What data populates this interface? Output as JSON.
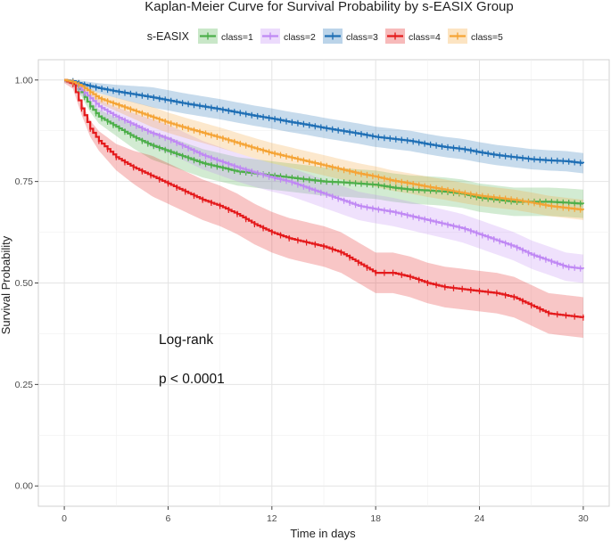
{
  "chart_data": {
    "type": "line",
    "title": "Kaplan-Meier Curve for Survival Probability by s-EASIX Group",
    "xlabel": "Time in days",
    "ylabel": "Survival Probability",
    "xlim": [
      0,
      30
    ],
    "ylim": [
      0,
      1
    ],
    "xticks": [
      0,
      6,
      12,
      18,
      24,
      30
    ],
    "yticks": [
      0.0,
      0.25,
      0.5,
      0.75,
      1.0
    ],
    "ytick_labels": [
      "0.00",
      "0.25",
      "0.50",
      "0.75",
      "1.00"
    ],
    "legend_title": "s-EASIX",
    "legend_position": "top",
    "annotation": {
      "line1": "Log-rank",
      "line2": "p < 0.0001"
    },
    "series": [
      {
        "name": "class=1",
        "color": "#4daf4a",
        "band": 0.035,
        "x": [
          0,
          0.5,
          1,
          1.5,
          2,
          3,
          4,
          5,
          6,
          7,
          8,
          9,
          10,
          11,
          12,
          13,
          14,
          15,
          16,
          17,
          18,
          19,
          20,
          21,
          22,
          23,
          24,
          25,
          26,
          27,
          28,
          29,
          30
        ],
        "y": [
          1.0,
          0.995,
          0.97,
          0.935,
          0.91,
          0.885,
          0.86,
          0.84,
          0.825,
          0.81,
          0.795,
          0.785,
          0.775,
          0.77,
          0.765,
          0.76,
          0.755,
          0.75,
          0.748,
          0.745,
          0.742,
          0.735,
          0.73,
          0.728,
          0.725,
          0.72,
          0.71,
          0.705,
          0.7,
          0.7,
          0.7,
          0.698,
          0.695
        ]
      },
      {
        "name": "class=2",
        "color": "#c089f4",
        "band": 0.035,
        "x": [
          0,
          0.5,
          1,
          1.5,
          2,
          3,
          4,
          5,
          6,
          7,
          8,
          9,
          10,
          11,
          12,
          13,
          14,
          15,
          16,
          17,
          18,
          19,
          20,
          21,
          22,
          23,
          24,
          25,
          26,
          27,
          28,
          29,
          30
        ],
        "y": [
          1.0,
          0.995,
          0.975,
          0.955,
          0.935,
          0.91,
          0.89,
          0.87,
          0.855,
          0.835,
          0.815,
          0.8,
          0.785,
          0.772,
          0.76,
          0.75,
          0.735,
          0.72,
          0.705,
          0.69,
          0.682,
          0.675,
          0.665,
          0.655,
          0.645,
          0.635,
          0.62,
          0.605,
          0.59,
          0.57,
          0.555,
          0.54,
          0.535
        ]
      },
      {
        "name": "class=3",
        "color": "#1f6fb5",
        "band": 0.025,
        "x": [
          0,
          0.5,
          1,
          1.5,
          2,
          3,
          4,
          5,
          6,
          7,
          8,
          9,
          10,
          11,
          12,
          13,
          14,
          15,
          16,
          17,
          18,
          19,
          20,
          21,
          22,
          23,
          24,
          25,
          26,
          27,
          28,
          29,
          30
        ],
        "y": [
          1.0,
          0.997,
          0.99,
          0.985,
          0.98,
          0.972,
          0.965,
          0.958,
          0.95,
          0.942,
          0.935,
          0.928,
          0.92,
          0.912,
          0.905,
          0.897,
          0.89,
          0.882,
          0.875,
          0.868,
          0.86,
          0.855,
          0.85,
          0.842,
          0.835,
          0.83,
          0.822,
          0.815,
          0.81,
          0.805,
          0.802,
          0.8,
          0.795
        ]
      },
      {
        "name": "class=4",
        "color": "#e41a1c",
        "band": 0.05,
        "x": [
          0,
          0.5,
          1,
          1.5,
          2,
          2.5,
          3,
          4,
          5,
          6,
          7,
          8,
          9,
          10,
          11,
          12,
          13,
          14,
          15,
          16,
          17,
          18,
          19,
          20,
          21,
          22,
          23,
          24,
          25,
          26,
          27,
          28,
          29,
          30
        ],
        "y": [
          1.0,
          0.99,
          0.93,
          0.88,
          0.85,
          0.83,
          0.81,
          0.785,
          0.765,
          0.745,
          0.725,
          0.705,
          0.69,
          0.67,
          0.645,
          0.625,
          0.61,
          0.6,
          0.59,
          0.575,
          0.55,
          0.525,
          0.525,
          0.515,
          0.5,
          0.49,
          0.485,
          0.48,
          0.475,
          0.465,
          0.445,
          0.425,
          0.42,
          0.415
        ]
      },
      {
        "name": "class=5",
        "color": "#f5a436",
        "band": 0.025,
        "x": [
          0,
          0.5,
          1,
          1.5,
          2,
          3,
          4,
          5,
          6,
          7,
          8,
          9,
          10,
          11,
          12,
          13,
          14,
          15,
          16,
          17,
          18,
          19,
          20,
          21,
          22,
          23,
          24,
          25,
          26,
          27,
          28,
          29,
          30
        ],
        "y": [
          1.0,
          0.995,
          0.985,
          0.97,
          0.955,
          0.94,
          0.925,
          0.91,
          0.895,
          0.882,
          0.87,
          0.858,
          0.845,
          0.832,
          0.82,
          0.81,
          0.8,
          0.79,
          0.78,
          0.77,
          0.762,
          0.752,
          0.745,
          0.737,
          0.73,
          0.722,
          0.715,
          0.71,
          0.705,
          0.698,
          0.69,
          0.685,
          0.68
        ]
      }
    ]
  }
}
